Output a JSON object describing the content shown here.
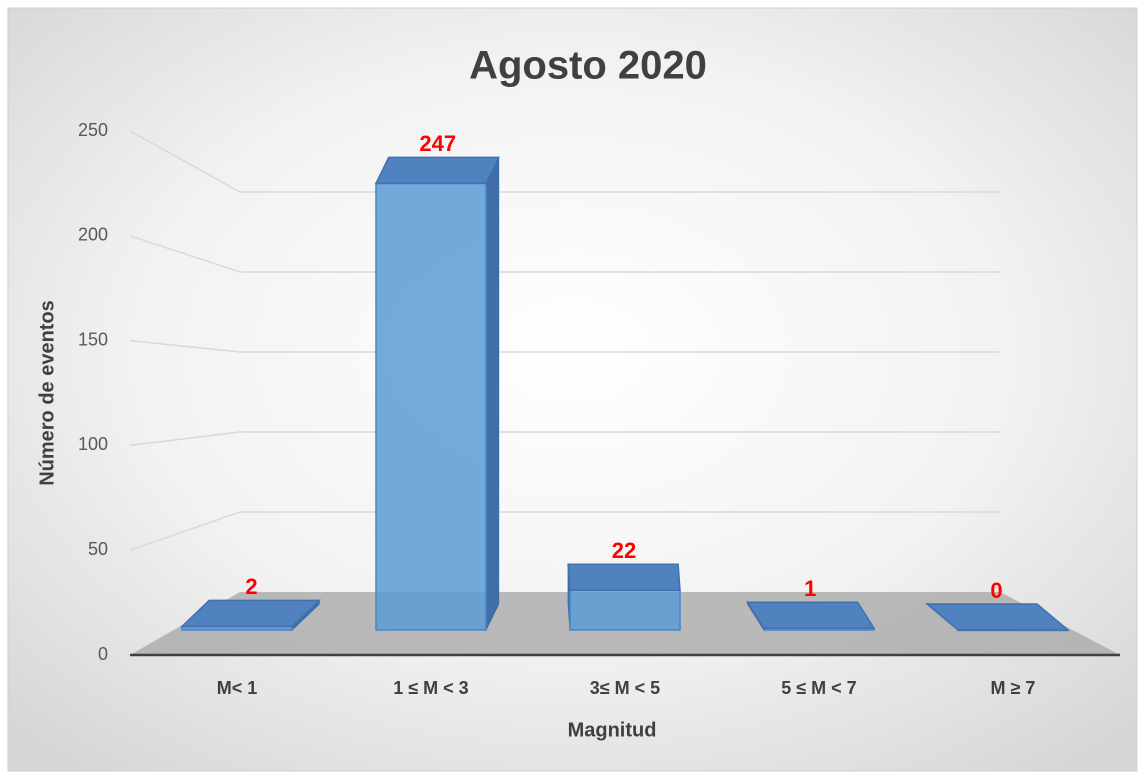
{
  "chart_data": {
    "type": "bar3d",
    "title": "Agosto 2020",
    "x_label": "Magnitud",
    "y_label": "Número de eventos",
    "categories": [
      "M< 1",
      "1 ≤ M < 3",
      "3≤ M < 5",
      "5 ≤ M < 7",
      "M ≥ 7"
    ],
    "values": [
      2,
      247,
      22,
      1,
      0
    ],
    "color": "#5b9bd5",
    "label_color": "#ff0000",
    "ylim": [
      0,
      250
    ],
    "yticks": [
      0,
      50,
      100,
      150,
      200,
      250
    ],
    "grid": true
  }
}
